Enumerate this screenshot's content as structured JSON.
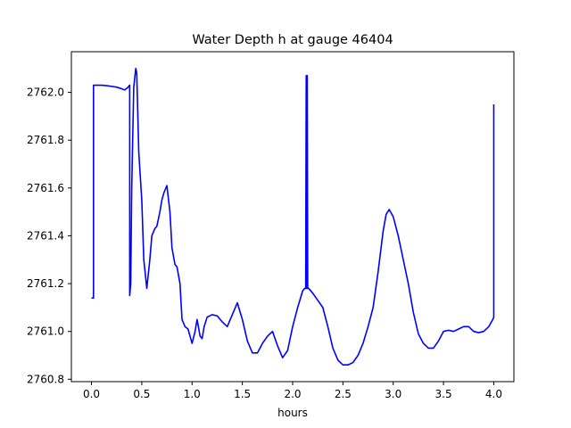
{
  "chart_data": {
    "type": "line",
    "title": "Water Depth h at gauge 46404",
    "xlabel": "hours",
    "ylabel": "",
    "xlim": [
      -0.2,
      4.2
    ],
    "ylim": [
      2760.79,
      2762.17
    ],
    "xticks": [
      0.0,
      0.5,
      1.0,
      1.5,
      2.0,
      2.5,
      3.0,
      3.5,
      4.0
    ],
    "xtick_labels": [
      "0.0",
      "0.5",
      "1.0",
      "1.5",
      "2.0",
      "2.5",
      "3.0",
      "3.5",
      "4.0"
    ],
    "yticks": [
      2760.8,
      2761.0,
      2761.2,
      2761.4,
      2761.6,
      2761.8,
      2762.0
    ],
    "ytick_labels": [
      "2760.8",
      "2761.0",
      "2761.2",
      "2761.4",
      "2761.6",
      "2761.8",
      "2762.0"
    ],
    "grid": false,
    "series": [
      {
        "color": "#0000ff",
        "x": [
          0.0,
          0.02,
          0.02,
          0.03,
          0.05,
          0.1,
          0.15,
          0.2,
          0.25,
          0.3,
          0.33,
          0.36,
          0.38,
          0.38,
          0.39,
          0.4,
          0.42,
          0.44,
          0.45,
          0.47,
          0.5,
          0.52,
          0.55,
          0.58,
          0.6,
          0.63,
          0.65,
          0.68,
          0.7,
          0.72,
          0.75,
          0.78,
          0.8,
          0.83,
          0.85,
          0.88,
          0.9,
          0.93,
          0.96,
          1.0,
          1.03,
          1.05,
          1.08,
          1.1,
          1.12,
          1.15,
          1.2,
          1.25,
          1.3,
          1.35,
          1.4,
          1.45,
          1.5,
          1.55,
          1.6,
          1.65,
          1.7,
          1.75,
          1.8,
          1.85,
          1.9,
          1.95,
          2.0,
          2.05,
          2.1,
          2.12,
          2.13,
          2.135,
          2.14,
          2.145,
          2.15,
          2.16,
          2.2,
          2.25,
          2.3,
          2.35,
          2.4,
          2.45,
          2.5,
          2.55,
          2.6,
          2.65,
          2.7,
          2.75,
          2.8,
          2.85,
          2.9,
          2.93,
          2.96,
          3.0,
          3.05,
          3.1,
          3.15,
          3.2,
          3.25,
          3.3,
          3.35,
          3.4,
          3.45,
          3.5,
          3.55,
          3.6,
          3.65,
          3.7,
          3.75,
          3.8,
          3.85,
          3.9,
          3.95,
          3.99,
          4.0,
          4.0
        ],
        "y": [
          2761.14,
          2761.14,
          2762.03,
          2762.03,
          2762.03,
          2762.03,
          2762.028,
          2762.025,
          2762.022,
          2762.015,
          2762.01,
          2762.02,
          2762.03,
          2761.15,
          2761.2,
          2761.6,
          2762.02,
          2762.1,
          2762.08,
          2761.75,
          2761.55,
          2761.3,
          2761.18,
          2761.3,
          2761.4,
          2761.43,
          2761.44,
          2761.5,
          2761.55,
          2761.58,
          2761.61,
          2761.5,
          2761.35,
          2761.28,
          2761.27,
          2761.2,
          2761.05,
          2761.02,
          2761.01,
          2760.95,
          2761.0,
          2761.05,
          2760.98,
          2760.97,
          2761.02,
          2761.06,
          2761.07,
          2761.065,
          2761.04,
          2761.02,
          2761.07,
          2761.12,
          2761.05,
          2760.96,
          2760.91,
          2760.91,
          2760.95,
          2760.98,
          2761.0,
          2760.94,
          2760.89,
          2760.92,
          2761.02,
          2761.1,
          2761.17,
          2761.18,
          2761.18,
          2762.07,
          2761.18,
          2762.07,
          2761.18,
          2761.18,
          2761.16,
          2761.13,
          2761.1,
          2761.02,
          2760.93,
          2760.88,
          2760.86,
          2760.86,
          2760.87,
          2760.9,
          2760.95,
          2761.02,
          2761.1,
          2761.25,
          2761.42,
          2761.49,
          2761.51,
          2761.48,
          2761.4,
          2761.3,
          2761.2,
          2761.08,
          2760.99,
          2760.95,
          2760.93,
          2760.93,
          2760.96,
          2761.0,
          2761.005,
          2761.0,
          2761.01,
          2761.02,
          2761.02,
          2761.0,
          2760.995,
          2761.0,
          2761.02,
          2761.05,
          2761.06,
          2761.95
        ]
      }
    ]
  }
}
